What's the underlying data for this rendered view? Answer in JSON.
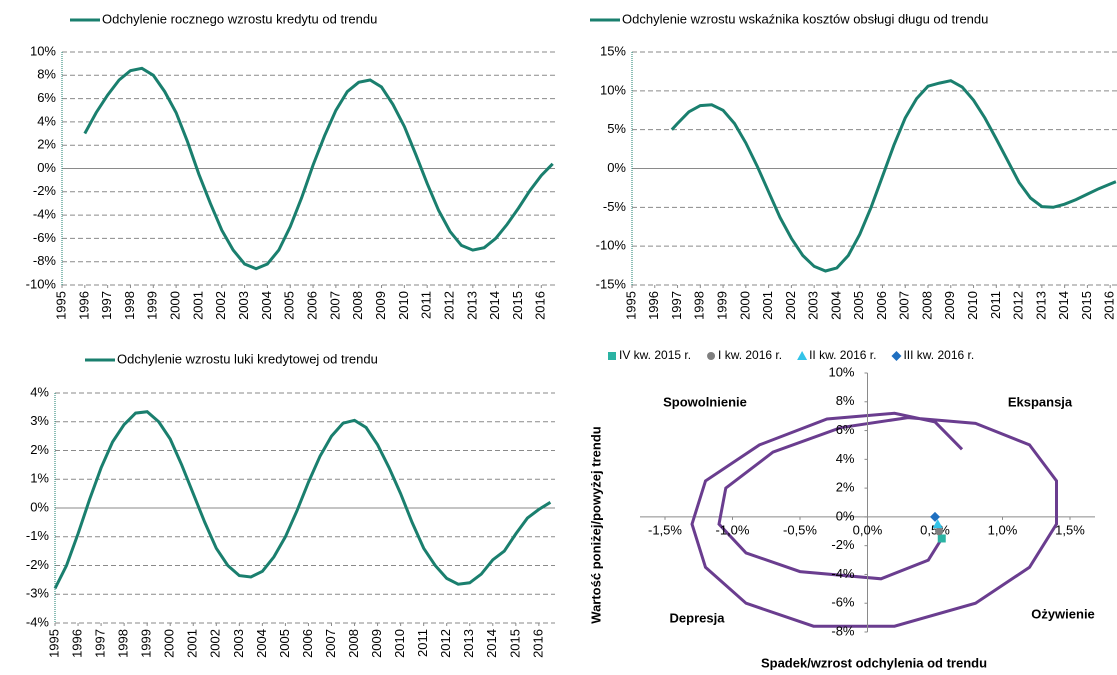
{
  "chart_data": [
    {
      "type": "line",
      "grid": true,
      "series": [
        {
          "name": "Odchylenie rocznego wzrostu kredytu od trendu",
          "color": "#1a7f6e",
          "x": [
            1996,
            1996.5,
            1997,
            1997.5,
            1998,
            1998.5,
            1999,
            1999.5,
            2000,
            2000.5,
            2001,
            2001.5,
            2002,
            2002.5,
            2003,
            2003.5,
            2004,
            2004.5,
            2005,
            2005.5,
            2006,
            2006.5,
            2007,
            2007.5,
            2008,
            2008.5,
            2009,
            2009.5,
            2010,
            2010.5,
            2011,
            2011.5,
            2012,
            2012.5,
            2013,
            2013.5,
            2014,
            2014.5,
            2015,
            2015.5,
            2016,
            2016.5
          ],
          "values": [
            3.0,
            4.8,
            6.3,
            7.6,
            8.4,
            8.6,
            8.0,
            6.6,
            4.8,
            2.3,
            -0.5,
            -3.0,
            -5.3,
            -7.0,
            -8.2,
            -8.6,
            -8.2,
            -7.0,
            -5.0,
            -2.5,
            0.3,
            2.8,
            5.0,
            6.6,
            7.4,
            7.6,
            7.0,
            5.5,
            3.6,
            1.2,
            -1.3,
            -3.6,
            -5.4,
            -6.6,
            -7.0,
            -6.8,
            -6.0,
            -4.8,
            -3.4,
            -1.9,
            -0.6,
            0.4
          ]
        }
      ],
      "xlim": [
        1995,
        2016.6
      ],
      "xticks": [
        1995,
        1996,
        1997,
        1998,
        1999,
        2000,
        2001,
        2002,
        2003,
        2004,
        2005,
        2006,
        2007,
        2008,
        2009,
        2010,
        2011,
        2012,
        2013,
        2014,
        2015,
        2016
      ],
      "ylim": [
        -10,
        10
      ],
      "yticks": [
        {
          "value": -10,
          "label": "-10%"
        },
        {
          "value": -8,
          "label": "-8%"
        },
        {
          "value": -6,
          "label": "-6%"
        },
        {
          "value": -4,
          "label": "-4%"
        },
        {
          "value": -2,
          "label": "-2%"
        },
        {
          "value": 0,
          "label": "0%"
        },
        {
          "value": 2,
          "label": "2%"
        },
        {
          "value": 4,
          "label": "4%"
        },
        {
          "value": 6,
          "label": "6%"
        },
        {
          "value": 8,
          "label": "8%"
        },
        {
          "value": 10,
          "label": "10%"
        }
      ]
    },
    {
      "type": "line",
      "grid": true,
      "series": [
        {
          "name": "Odchylenie wzrostu wskaźnika kosztów obsługi długu od trendu",
          "color": "#1a7f6e",
          "x": [
            1996.75,
            1997,
            1997.5,
            1998,
            1998.5,
            1999,
            1999.5,
            2000,
            2000.5,
            2001,
            2001.5,
            2002,
            2002.5,
            2003,
            2003.5,
            2004,
            2004.5,
            2005,
            2005.5,
            2006,
            2006.5,
            2007,
            2007.5,
            2008,
            2008.5,
            2009,
            2009.5,
            2010,
            2010.5,
            2011,
            2011.5,
            2012,
            2012.5,
            2013,
            2013.5,
            2014,
            2014.5,
            2015,
            2015.5,
            2016,
            2016.25
          ],
          "values": [
            5.0,
            5.8,
            7.3,
            8.1,
            8.2,
            7.5,
            5.8,
            3.3,
            0.3,
            -3.0,
            -6.3,
            -9.0,
            -11.2,
            -12.6,
            -13.2,
            -12.8,
            -11.2,
            -8.5,
            -5.0,
            -1.0,
            3.0,
            6.5,
            9.0,
            10.6,
            11.0,
            11.3,
            10.5,
            8.8,
            6.5,
            3.8,
            1.0,
            -1.8,
            -3.8,
            -4.9,
            -5.0,
            -4.6,
            -4.0,
            -3.3,
            -2.6,
            -2.0,
            -1.7
          ]
        }
      ],
      "xlim": [
        1995,
        2016.3
      ],
      "xticks": [
        1995,
        1996,
        1997,
        1998,
        1999,
        2000,
        2001,
        2002,
        2003,
        2004,
        2005,
        2006,
        2007,
        2008,
        2009,
        2010,
        2011,
        2012,
        2013,
        2014,
        2015,
        2016
      ],
      "ylim": [
        -15,
        15
      ],
      "yticks": [
        {
          "value": -15,
          "label": "-15%"
        },
        {
          "value": -10,
          "label": "-10%"
        },
        {
          "value": -5,
          "label": "-5%"
        },
        {
          "value": 0,
          "label": "0%"
        },
        {
          "value": 5,
          "label": "5%"
        },
        {
          "value": 10,
          "label": "10%"
        },
        {
          "value": 15,
          "label": "15%"
        }
      ]
    },
    {
      "type": "line",
      "grid": true,
      "series": [
        {
          "name": "Odchylenie wzrostu luki kredytowej od trendu",
          "color": "#1a7f6e",
          "x": [
            1995,
            1995.5,
            1996,
            1996.5,
            1997,
            1997.5,
            1998,
            1998.5,
            1999,
            1999.5,
            2000,
            2000.5,
            2001,
            2001.5,
            2002,
            2002.5,
            2003,
            2003.5,
            2004,
            2004.5,
            2005,
            2005.5,
            2006,
            2006.5,
            2007,
            2007.5,
            2008,
            2008.5,
            2009,
            2009.5,
            2010,
            2010.5,
            2011,
            2011.5,
            2012,
            2012.5,
            2013,
            2013.5,
            2014,
            2014.5,
            2015,
            2015.5,
            2016,
            2016.5
          ],
          "values": [
            -2.8,
            -2.0,
            -0.9,
            0.3,
            1.4,
            2.3,
            2.9,
            3.3,
            3.35,
            3.0,
            2.4,
            1.5,
            0.5,
            -0.5,
            -1.4,
            -2.0,
            -2.35,
            -2.4,
            -2.2,
            -1.7,
            -1.0,
            -0.1,
            0.9,
            1.8,
            2.5,
            2.95,
            3.05,
            2.8,
            2.2,
            1.4,
            0.5,
            -0.5,
            -1.4,
            -2.0,
            -2.45,
            -2.65,
            -2.6,
            -2.3,
            -1.8,
            -1.5,
            -0.9,
            -0.35,
            -0.05,
            0.2
          ]
        }
      ],
      "xlim": [
        1995,
        2016.7
      ],
      "xticks": [
        1995,
        1996,
        1997,
        1998,
        1999,
        2000,
        2001,
        2002,
        2003,
        2004,
        2005,
        2006,
        2007,
        2008,
        2009,
        2010,
        2011,
        2012,
        2013,
        2014,
        2015,
        2016
      ],
      "ylim": [
        -4,
        4
      ],
      "yticks": [
        {
          "value": -4,
          "label": "-4%"
        },
        {
          "value": -3,
          "label": "-3%"
        },
        {
          "value": -2,
          "label": "-2%"
        },
        {
          "value": -1,
          "label": "-1%"
        },
        {
          "value": 0,
          "label": "0%"
        },
        {
          "value": 1,
          "label": "1%"
        },
        {
          "value": 2,
          "label": "2%"
        },
        {
          "value": 3,
          "label": "3%"
        },
        {
          "value": 4,
          "label": "4%"
        }
      ]
    },
    {
      "type": "scatter",
      "xlabel": "Spadek/wzrost odchylenia od trendu",
      "ylabel": "Wartość poniżej/powyżej trendu",
      "annotations": [
        "Spowolnienie",
        "Ekspansja",
        "Depresja",
        "Ożywienie"
      ],
      "series": [
        {
          "name": "IV kw. 2015 r.",
          "color": "#2bb3a3",
          "marker": "square",
          "x": [
            0.55
          ],
          "values": [
            -1.5
          ]
        },
        {
          "name": "I kw. 2016 r.",
          "color": "#7f7f7f",
          "marker": "circle",
          "x": [
            0.53
          ],
          "values": [
            -1.0
          ]
        },
        {
          "name": "II kw. 2016 r.",
          "color": "#33c3e8",
          "marker": "triangle",
          "x": [
            0.52
          ],
          "values": [
            -0.5
          ]
        },
        {
          "name": "III kw. 2016 r.",
          "color": "#1f6fc0",
          "marker": "diamond",
          "x": [
            0.5
          ],
          "values": [
            0.0
          ]
        },
        {
          "color": "#6a3d8f",
          "marker": "line",
          "x": [
            0.55,
            0.45,
            0.1,
            -0.5,
            -0.9,
            -1.1,
            -1.05,
            -0.7,
            -0.2,
            0.3,
            0.8,
            1.2,
            1.4,
            1.4,
            1.2,
            0.8,
            0.2,
            -0.4,
            -0.9,
            -1.2,
            -1.3,
            -1.2,
            -0.8,
            -0.3,
            0.2,
            0.5,
            0.7
          ],
          "values": [
            -1.5,
            -3.0,
            -4.3,
            -3.8,
            -2.5,
            -0.5,
            2.0,
            4.5,
            6.2,
            6.9,
            6.5,
            5.0,
            2.5,
            -0.5,
            -3.5,
            -6.0,
            -7.6,
            -7.6,
            -6.0,
            -3.5,
            -0.5,
            2.5,
            5.0,
            6.8,
            7.2,
            6.6,
            4.7
          ]
        }
      ],
      "xlim": [
        -1.5,
        1.5
      ],
      "xticks": [
        {
          "value": -1.5,
          "label": "-1,5%"
        },
        {
          "value": -1,
          "label": "-1,0%"
        },
        {
          "value": -0.5,
          "label": "-0,5%"
        },
        {
          "value": 0,
          "label": "0,0%"
        },
        {
          "value": 0.5,
          "label": "0,5%"
        },
        {
          "value": 1,
          "label": "1,0%"
        },
        {
          "value": 1.5,
          "label": "1,5%"
        }
      ],
      "ylim": [
        -8,
        10
      ],
      "yticks": [
        {
          "value": -8,
          "label": "-8%"
        },
        {
          "value": -6,
          "label": "-6%"
        },
        {
          "value": -4,
          "label": "-4%"
        },
        {
          "value": -2,
          "label": "-2%"
        },
        {
          "value": 0,
          "label": "0%"
        },
        {
          "value": 2,
          "label": "2%"
        },
        {
          "value": 4,
          "label": "4%"
        },
        {
          "value": 6,
          "label": "6%"
        },
        {
          "value": 8,
          "label": "8%"
        },
        {
          "value": 10,
          "label": "10%"
        }
      ]
    }
  ]
}
